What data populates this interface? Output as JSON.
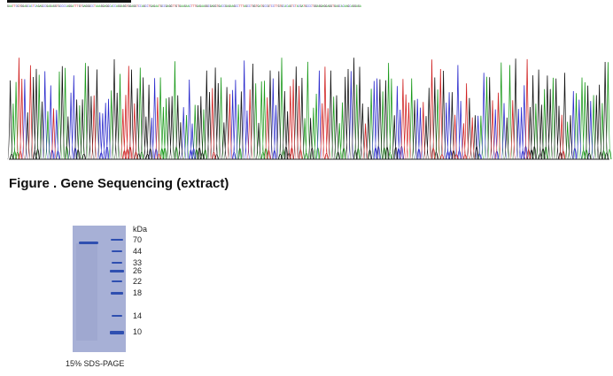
{
  "sequence": "GAATTCGTGGAGCACTCAGAGCCGAGAGGTGCCCCAGGATTTGTGAGGGCCTAAAGGAGGCACCAGGAGGTGGAGGTCCAGCCTGAGAATGCCGAGGTTGTGAAGAACTTTGAGAAGGCGAGGTGACCGAGAAGCCTTTAGCCTGGTGATGCCGTCCTTGTGCACAGTCTACGATGCCCTGGAGGAGGAGGTGAGCACAAGCAGGAGA",
  "base_colors": {
    "A": "#1a9a1a",
    "C": "#2a2acc",
    "G": "#111111",
    "T": "#d02020"
  },
  "figure_caption": "Figure . Gene Sequencing (extract)",
  "gel": {
    "unit": "kDa",
    "markers": [
      "70",
      "44",
      "33",
      "26",
      "22",
      "18",
      "14",
      "10"
    ],
    "caption": "15% SDS-PAGE",
    "gel_color": "#a7b0d6",
    "band_color": "#2f4fb0"
  }
}
